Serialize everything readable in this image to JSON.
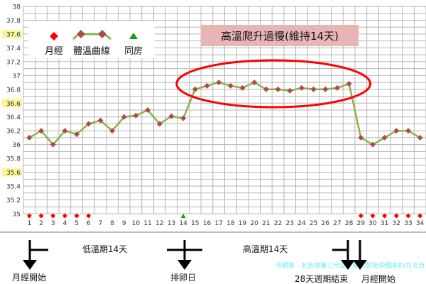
{
  "chart_data": {
    "type": "line",
    "title": "高溫爬升過慢(維持14天)",
    "xlabel": "",
    "ylabel": "",
    "x": [
      1,
      2,
      3,
      4,
      5,
      6,
      7,
      8,
      9,
      10,
      11,
      12,
      13,
      14,
      15,
      16,
      17,
      18,
      19,
      20,
      21,
      22,
      23,
      24,
      25,
      26,
      27,
      28,
      29,
      30,
      31,
      32,
      33,
      34
    ],
    "series": [
      {
        "name": "體溫曲線",
        "color": "#8db346",
        "marker_color": "#b04a4a",
        "values": [
          36.1,
          36.2,
          36.0,
          36.2,
          36.15,
          36.3,
          36.35,
          36.2,
          36.4,
          36.42,
          36.5,
          36.3,
          36.41,
          36.38,
          36.8,
          36.85,
          36.9,
          36.85,
          36.82,
          36.9,
          36.8,
          36.8,
          36.78,
          36.82,
          36.8,
          36.8,
          36.82,
          36.88,
          36.1,
          36.0,
          36.1,
          36.2,
          36.2,
          36.1
        ]
      }
    ],
    "menstruation_days": [
      1,
      2,
      3,
      4,
      5,
      6,
      29,
      30,
      31,
      32,
      33,
      34
    ],
    "intercourse_days": [
      14
    ],
    "ylim": [
      35,
      38
    ],
    "yticks": [
      "35",
      "35.2",
      "35.4",
      "35.6",
      "35.8",
      "36",
      "36.2",
      "36.4",
      "36.6",
      "36.8",
      "37",
      "37.2",
      "37.4",
      "37.6",
      "37.8",
      "38"
    ],
    "highlighted_yticks": [
      "35.6",
      "36.6",
      "37.6"
    ],
    "grid": true,
    "legend": {
      "placement": "top-left",
      "items": [
        {
          "label": "月經",
          "symbol": "diamond",
          "color": "#ff0000"
        },
        {
          "label": "體溫曲線",
          "symbol": "line-diamond",
          "color": "#b04a4a"
        },
        {
          "label": "同房",
          "symbol": "triangle",
          "color": "#1a9a1a"
        }
      ]
    },
    "annotation": {
      "shape": "ellipse",
      "color": "#ff0000",
      "around_days": [
        15,
        28
      ]
    }
  },
  "timeline": {
    "low_phase": "低溫期14天",
    "high_phase": "高溫期14天",
    "period_start_1": "月經開始",
    "ovulation": "排卵日",
    "cycle_end": "28天週期結束",
    "period_start_2": "月經開始"
  },
  "watermark": "寻嗣帮 - 北京做第三代试管婴儿医院详细排名(在北京"
}
